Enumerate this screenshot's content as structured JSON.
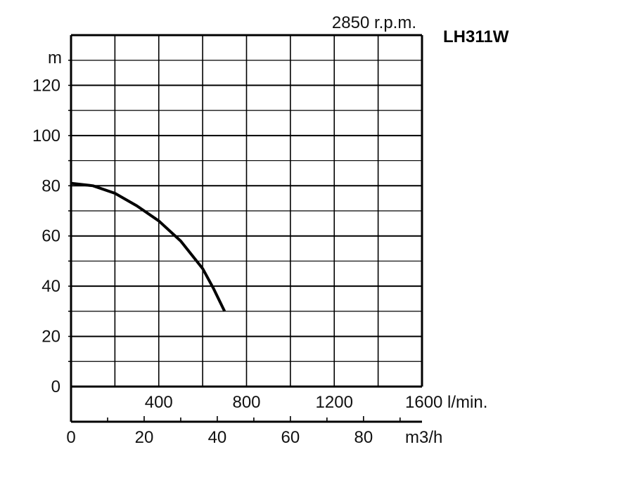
{
  "chart_data": {
    "type": "line",
    "title": "LH311W",
    "subtitle": "2850 r.p.m.",
    "ylabel": "m",
    "x_lmin_unit": "l/min.",
    "x_m3h_unit": "m3/h",
    "ylim": [
      0,
      140
    ],
    "xlim_lmin": [
      0,
      1600
    ],
    "xlim_m3h": [
      0,
      96
    ],
    "y_ticks": [
      0,
      20,
      40,
      60,
      80,
      100,
      120
    ],
    "x_ticks_lmin": [
      400,
      800,
      1200,
      1600
    ],
    "x_ticks_m3h": [
      0,
      20,
      40,
      60,
      80
    ],
    "grid": true,
    "series": [
      {
        "color": "#000000",
        "x_lmin": [
          0,
          100,
          200,
          300,
          400,
          500,
          600,
          650,
          700
        ],
        "y": [
          81,
          80,
          77,
          72,
          66,
          58,
          47,
          39,
          30
        ]
      }
    ]
  }
}
